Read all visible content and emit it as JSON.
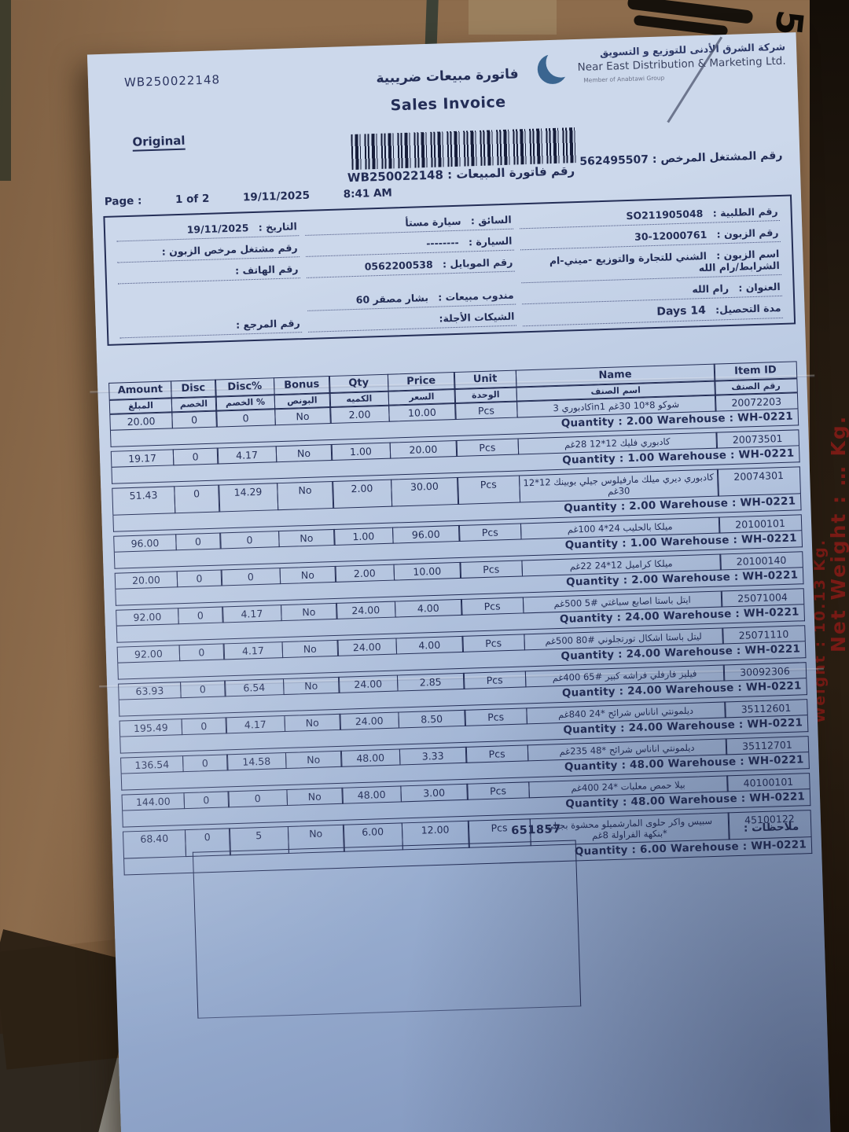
{
  "page": {
    "doc_number_top": "WB250022148",
    "title_ar": "فاتورة مبيعات ضريبية",
    "title_en": "Sales Invoice",
    "copy_label": "Original",
    "licensed_dealer_label_ar": "رقم المشتغل المرخص :",
    "licensed_dealer_no": "562495507",
    "invoice_no_label_ar": "رقم فاتورة المبيعات :",
    "invoice_no": "WB250022148",
    "page_label": "Page :",
    "page_value": "1 of 2",
    "date": "19/11/2025",
    "time": "8:41 AM"
  },
  "logo": {
    "company_ar": "شركة الشرق الأدنى للتوزيع و التسويق",
    "company_en": "Near East Distribution & Marketing Ltd.",
    "member": "Member of Anabtawi Group"
  },
  "info": {
    "order_no_label": "رقم الطلبية :",
    "order_no": "SO211905048",
    "driver_label": "السائق :",
    "driver": "سيارة مستأ",
    "date_label": "التاريخ :",
    "date": "19/11/2025",
    "customer_no_label": "رقم الزبون :",
    "customer_no": "12000761-30",
    "vehicle_label": "السيارة :",
    "vehicle": "--------",
    "cust_licensed_label": "رقم مشتغل مرخص الزبون :",
    "customer_name_label": "اسم الزبون :",
    "customer_name": "الشني للتجارة والتوزيع -ميني-ام الشرابط/رام الله",
    "mobile_label": "رقم الموبايل :",
    "mobile": "0562200538",
    "phone_label": "رقم الهاتف :",
    "address_label": "العنوان :",
    "address": "رام الله",
    "sales_rep_label": "مندوب مبيعات :",
    "sales_rep": "بشار مصقر 60",
    "collection_label": "مدة التحصيل:",
    "collection": "14 Days",
    "checks_label": "الشيكات الأجلة:",
    "ref_label": "رقم المرجع :"
  },
  "table": {
    "headers_en": [
      "Amount",
      "Disc",
      "Disc%",
      "Bonus",
      "Qty",
      "Price",
      "Unit",
      "Name",
      "Item ID"
    ],
    "headers_ar": [
      "المبلغ",
      "الخصم",
      "الخصم %",
      "البونص",
      "الكميه",
      "السعر",
      "الوحدة",
      "اسم الصنف",
      "رقم الصنف"
    ],
    "items": [
      {
        "item_id": "20072203",
        "name": "شوكو 8*10 30غم in1كادبوري 3",
        "unit": "Pcs",
        "price": "10.00",
        "qty": "2.00",
        "bonus": "No",
        "disc_pct": "0",
        "disc": "0",
        "amount": "20.00",
        "qty_line": "Quantity : 2.00  Warehouse : WH-0221"
      },
      {
        "item_id": "20073501",
        "name": "كادبوري فليك 12*12 28غم",
        "unit": "Pcs",
        "price": "20.00",
        "qty": "1.00",
        "bonus": "No",
        "disc_pct": "4.17",
        "disc": "0",
        "amount": "19.17",
        "qty_line": "Quantity : 1.00  Warehouse : WH-0221"
      },
      {
        "item_id": "20074301",
        "name": "كادبوري ديري ميلك مارفيلوس جيلي بوبينك 12*12 30غم",
        "unit": "Pcs",
        "price": "30.00",
        "qty": "2.00",
        "bonus": "No",
        "disc_pct": "14.29",
        "disc": "0",
        "amount": "51.43",
        "qty_line": "Quantity : 2.00  Warehouse : WH-0221"
      },
      {
        "item_id": "20100101",
        "name": "ميلكا بالحليب 24*4 100غم",
        "unit": "Pcs",
        "price": "96.00",
        "qty": "1.00",
        "bonus": "No",
        "disc_pct": "0",
        "disc": "0",
        "amount": "96.00",
        "qty_line": "Quantity : 1.00  Warehouse : WH-0221"
      },
      {
        "item_id": "20100140",
        "name": "ميلكا كراميل 12*24 22غم",
        "unit": "Pcs",
        "price": "10.00",
        "qty": "2.00",
        "bonus": "No",
        "disc_pct": "0",
        "disc": "0",
        "amount": "20.00",
        "qty_line": "Quantity : 2.00  Warehouse : WH-0221"
      },
      {
        "item_id": "25071004",
        "name": "ايتل باستا اصابع سباغتي #5 500غم",
        "unit": "Pcs",
        "price": "4.00",
        "qty": "24.00",
        "bonus": "No",
        "disc_pct": "4.17",
        "disc": "0",
        "amount": "92.00",
        "qty_line": "Quantity : 24.00  Warehouse : WH-0221"
      },
      {
        "item_id": "25071110",
        "name": "ليتل باستا اشكال تورتجلوني #80 500غم",
        "unit": "Pcs",
        "price": "4.00",
        "qty": "24.00",
        "bonus": "No",
        "disc_pct": "4.17",
        "disc": "0",
        "amount": "92.00",
        "qty_line": "Quantity : 24.00  Warehouse : WH-0221"
      },
      {
        "item_id": "30092306",
        "name": "فيليز فارفلي فراشه كبير #65 400غم",
        "unit": "Pcs",
        "price": "2.85",
        "qty": "24.00",
        "bonus": "No",
        "disc_pct": "6.54",
        "disc": "0",
        "amount": "63.93",
        "qty_line": "Quantity : 24.00  Warehouse : WH-0221"
      },
      {
        "item_id": "35112601",
        "name": "ديلمونتي اناناس شرائح *24 840غم",
        "unit": "Pcs",
        "price": "8.50",
        "qty": "24.00",
        "bonus": "No",
        "disc_pct": "4.17",
        "disc": "0",
        "amount": "195.49",
        "qty_line": "Quantity : 24.00  Warehouse : WH-0221"
      },
      {
        "item_id": "35112701",
        "name": "ديلمونتي اناناس شرائح *48 235غم",
        "unit": "Pcs",
        "price": "3.33",
        "qty": "48.00",
        "bonus": "No",
        "disc_pct": "14.58",
        "disc": "0",
        "amount": "136.54",
        "qty_line": "Quantity : 48.00  Warehouse : WH-0221"
      },
      {
        "item_id": "40100101",
        "name": "بيلا حمص معلبات *24 400غم",
        "unit": "Pcs",
        "price": "3.00",
        "qty": "48.00",
        "bonus": "No",
        "disc_pct": "0",
        "disc": "0",
        "amount": "144.00",
        "qty_line": "Quantity : 48.00  Warehouse : WH-0221"
      },
      {
        "item_id": "45100122",
        "name": "سبيس واكر حلوى المارشميلو محشوة بجيلي *بنكهة الفراولة 8غم",
        "unit": "Pcs",
        "price": "12.00",
        "qty": "6.00",
        "bonus": "No",
        "disc_pct": "5",
        "disc": "0",
        "amount": "68.40",
        "qty_line": "Quantity : 6.00  Warehouse : WH-0221"
      }
    ]
  },
  "notes": {
    "label": "ملاحظات :",
    "number": "651857"
  },
  "box_print": {
    "side_text_1": "Net Weight : … Kg.",
    "side_text_2": "Weight : 10.13 Kg.",
    "corner_digit": "5"
  }
}
